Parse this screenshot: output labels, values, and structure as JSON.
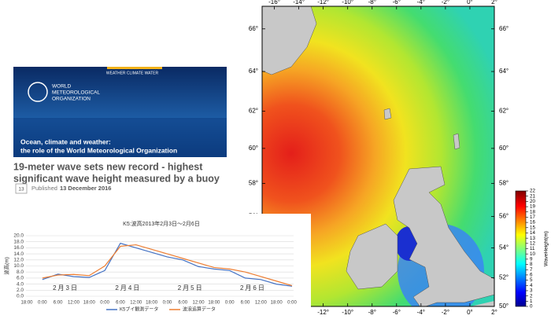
{
  "banner": {
    "tagline": "WEATHER CLIMATE WATER",
    "org": [
      "WORLD",
      "METEOROLOGICAL",
      "ORGANIZATION"
    ],
    "caption": [
      "Ocean, climate and weather:",
      "the role of the World Meteorological Organization"
    ]
  },
  "headline": [
    "19-meter wave sets new record - highest",
    "significant wave height measured by a buoy"
  ],
  "date_icon": "13",
  "published": {
    "label": "Published",
    "date": "13 December 2016"
  },
  "chart_data": [
    {
      "type": "line",
      "title": "K5:波高2013年2月3日～2月6日",
      "ylabel": "波高(m)",
      "categories": [
        "18:00",
        "0:00",
        "6:00",
        "12:00",
        "18:00",
        "0:00",
        "6:00",
        "12:00",
        "18:00",
        "0:00",
        "6:00",
        "12:00",
        "18:00",
        "0:00",
        "6:00",
        "12:00",
        "18:00",
        "0:00"
      ],
      "annotations": [
        "2月3日",
        "2月4日",
        "2月5日",
        "2月6日"
      ],
      "series": [
        {
          "name": "K5ブイ観測データ",
          "color": "#4472c4",
          "values": [
            null,
            5.5,
            7.3,
            6.5,
            6.2,
            8.5,
            17.5,
            16.0,
            14.5,
            13.0,
            12.0,
            9.8,
            9.0,
            8.5,
            6.0,
            5.5,
            4.0,
            3.3
          ]
        },
        {
          "name": "波浪追算データ",
          "color": "#ed7d31",
          "values": [
            null,
            6.0,
            7.0,
            7.2,
            6.8,
            10.0,
            16.5,
            17.0,
            15.5,
            14.0,
            12.5,
            11.0,
            9.5,
            9.0,
            8.0,
            6.5,
            5.0,
            3.5
          ]
        }
      ],
      "ylim": [
        0,
        20
      ],
      "yticks": [
        {
          "value": 0,
          "label": "0.0"
        },
        {
          "value": 2,
          "label": "2.0"
        },
        {
          "value": 4,
          "label": "4.0"
        },
        {
          "value": 6,
          "label": "6.0"
        },
        {
          "value": 8,
          "label": "8.0"
        },
        {
          "value": 10,
          "label": "10.0"
        },
        {
          "value": 12,
          "label": "12.0"
        },
        {
          "value": 14,
          "label": "14.0"
        },
        {
          "value": 16,
          "label": "16.0"
        },
        {
          "value": 18,
          "label": "18.0"
        },
        {
          "value": 20,
          "label": "20.0"
        }
      ],
      "grid": true
    },
    {
      "type": "map",
      "xlim": [
        -17,
        2
      ],
      "ylim": [
        50,
        67
      ],
      "xticks": [
        {
          "value": -16,
          "label": "-16°"
        },
        {
          "value": -14,
          "label": "-14°"
        },
        {
          "value": -12,
          "label": "-12°"
        },
        {
          "value": -10,
          "label": "-10°"
        },
        {
          "value": -8,
          "label": "-8°"
        },
        {
          "value": -6,
          "label": "-6°"
        },
        {
          "value": -4,
          "label": "-4°"
        },
        {
          "value": -2,
          "label": "-2°"
        },
        {
          "value": 0,
          "label": "0°"
        },
        {
          "value": 2,
          "label": "2°"
        }
      ],
      "yticks": [
        {
          "value": 50,
          "label": "50°"
        },
        {
          "value": 52,
          "label": "52°"
        },
        {
          "value": 54,
          "label": "54°"
        },
        {
          "value": 56,
          "label": "56°"
        },
        {
          "value": 58,
          "label": "58°"
        },
        {
          "value": 60,
          "label": "60°"
        },
        {
          "value": 62,
          "label": "62°"
        },
        {
          "value": 64,
          "label": "64°"
        },
        {
          "value": 66,
          "label": "66°"
        }
      ],
      "colorbar": {
        "label": "WaveHeight(m)",
        "lim": [
          0,
          22
        ],
        "ticks": [
          0,
          1,
          2,
          3,
          4,
          5,
          6,
          7,
          8,
          9,
          10,
          11,
          12,
          13,
          14,
          15,
          16,
          17,
          18,
          19,
          20,
          21,
          22
        ]
      }
    }
  ]
}
